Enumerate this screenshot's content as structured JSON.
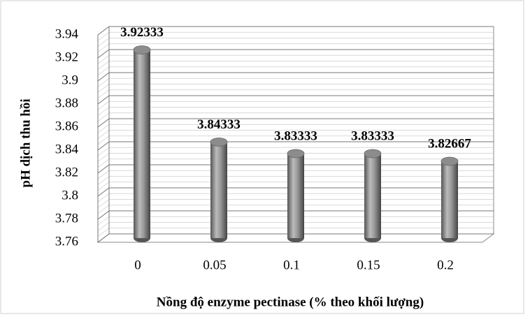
{
  "chart_data": {
    "type": "bar",
    "style": "3d-cylinder",
    "x_label": "Nồng độ enzyme pectinase (% theo khối lượng)",
    "y_label": "pH dịch thu hồi",
    "categories": [
      "0",
      "0.05",
      "0.1",
      "0.15",
      "0.2"
    ],
    "values": [
      3.92333,
      3.84333,
      3.83333,
      3.83333,
      3.82667
    ],
    "color": "#8c8c8c",
    "ylim": [
      3.76,
      3.94
    ],
    "yticks": [
      3.76,
      3.78,
      3.8,
      3.82,
      3.84,
      3.86,
      3.88,
      3.9,
      3.92,
      3.94
    ],
    "grid": true
  }
}
